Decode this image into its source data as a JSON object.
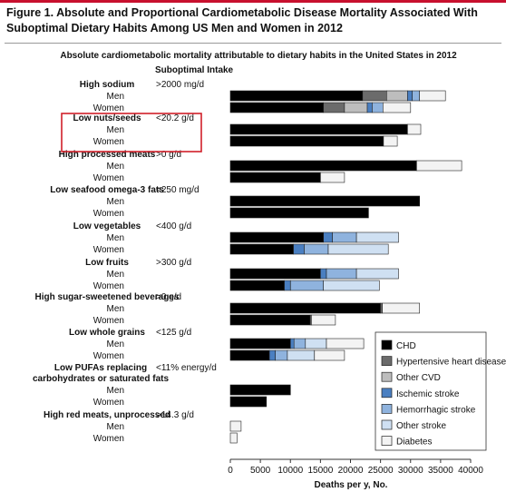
{
  "figure_title": "Figure 1. Absolute and Proportional Cardiometabolic Disease Mortality Associated With Suboptimal Dietary Habits Among US Men and Women in 2012",
  "colors": {
    "accent_bar": "#c8102e",
    "highlight_box": "#d0202a",
    "CHD": "#000000",
    "Hypertensive heart disease": "#6b6b6b",
    "Other CVD": "#bdbdbd",
    "Ischemic stroke": "#4a7fc1",
    "Hemorrhagic stroke": "#8fb3de",
    "Other stroke": "#cfe0f2",
    "Diabetes": "#f3f3f3"
  },
  "chart_data": {
    "type": "bar",
    "orientation": "horizontal",
    "stacked": true,
    "title": "Absolute cardiometabolic mortality attributable to dietary habits in the United States in 2012",
    "column_header": "Suboptimal Intake",
    "xlabel": "Deaths per y, No.",
    "xlim": [
      0,
      40000
    ],
    "xticks": [
      0,
      5000,
      10000,
      15000,
      20000,
      25000,
      30000,
      35000,
      40000
    ],
    "xtick_labels": [
      "0",
      "5000",
      "10000",
      "15000",
      "20000",
      "25000",
      "30000",
      "35000",
      "40000"
    ],
    "grid": false,
    "legend_position": "bottom-right",
    "highlighted_group": "Low nuts/seeds",
    "series_names": [
      "CHD",
      "Hypertensive heart disease",
      "Other CVD",
      "Ischemic stroke",
      "Hemorrhagic stroke",
      "Other stroke",
      "Diabetes"
    ],
    "groups": [
      {
        "label": "High sodium",
        "intake": ">2000 mg/d",
        "men": [
          22000,
          4000,
          3500,
          800,
          1200,
          0,
          4300
        ],
        "women": [
          15500,
          3500,
          3800,
          800,
          1800,
          0,
          4600
        ]
      },
      {
        "label": "Low nuts/seeds",
        "intake": "<20.2 g/d",
        "men": [
          29500,
          0,
          0,
          0,
          0,
          0,
          2200
        ],
        "women": [
          25500,
          0,
          0,
          0,
          0,
          0,
          2300
        ]
      },
      {
        "label": "High processed meats",
        "intake": ">0 g/d",
        "men": [
          31000,
          0,
          0,
          0,
          0,
          0,
          7500
        ],
        "women": [
          15000,
          0,
          0,
          0,
          0,
          0,
          4000
        ]
      },
      {
        "label": "Low seafood omega-3 fats",
        "intake": "<250 mg/d",
        "men": [
          31500,
          0,
          0,
          0,
          0,
          0,
          0
        ],
        "women": [
          23000,
          0,
          0,
          0,
          0,
          0,
          0
        ]
      },
      {
        "label": "Low vegetables",
        "intake": "<400 g/d",
        "men": [
          15500,
          0,
          0,
          1500,
          4000,
          7000,
          0
        ],
        "women": [
          10500,
          0,
          0,
          1800,
          4000,
          10000,
          0
        ]
      },
      {
        "label": "Low fruits",
        "intake": ">300 g/d",
        "men": [
          15000,
          0,
          0,
          1000,
          5000,
          7000,
          0
        ],
        "women": [
          9000,
          0,
          0,
          1000,
          5500,
          9300,
          0
        ]
      },
      {
        "label": "High sugar-sweetened beverages",
        "intake": ">0 g/d",
        "men": [
          25000,
          300,
          0,
          0,
          0,
          0,
          6200
        ],
        "women": [
          13300,
          200,
          0,
          0,
          0,
          0,
          4000
        ]
      },
      {
        "label": "Low whole grains",
        "intake": "<125 g/d",
        "men": [
          10000,
          0,
          0,
          600,
          1900,
          3500,
          6200
        ],
        "women": [
          6500,
          0,
          0,
          1000,
          2000,
          4500,
          5000
        ]
      },
      {
        "label": "Low PUFAs replacing carbohydrates or saturated fats",
        "intake": "<11% energy/d",
        "men": [
          10000,
          0,
          0,
          0,
          0,
          0,
          0
        ],
        "women": [
          6000,
          0,
          0,
          0,
          0,
          0,
          0
        ]
      },
      {
        "label": "High red meats, unprocessed",
        "intake": ">14.3 g/d",
        "men": [
          0,
          0,
          0,
          0,
          0,
          0,
          1800
        ],
        "women": [
          0,
          0,
          0,
          0,
          0,
          0,
          1100
        ]
      }
    ],
    "row_labels": {
      "men": "Men",
      "women": "Women"
    }
  }
}
